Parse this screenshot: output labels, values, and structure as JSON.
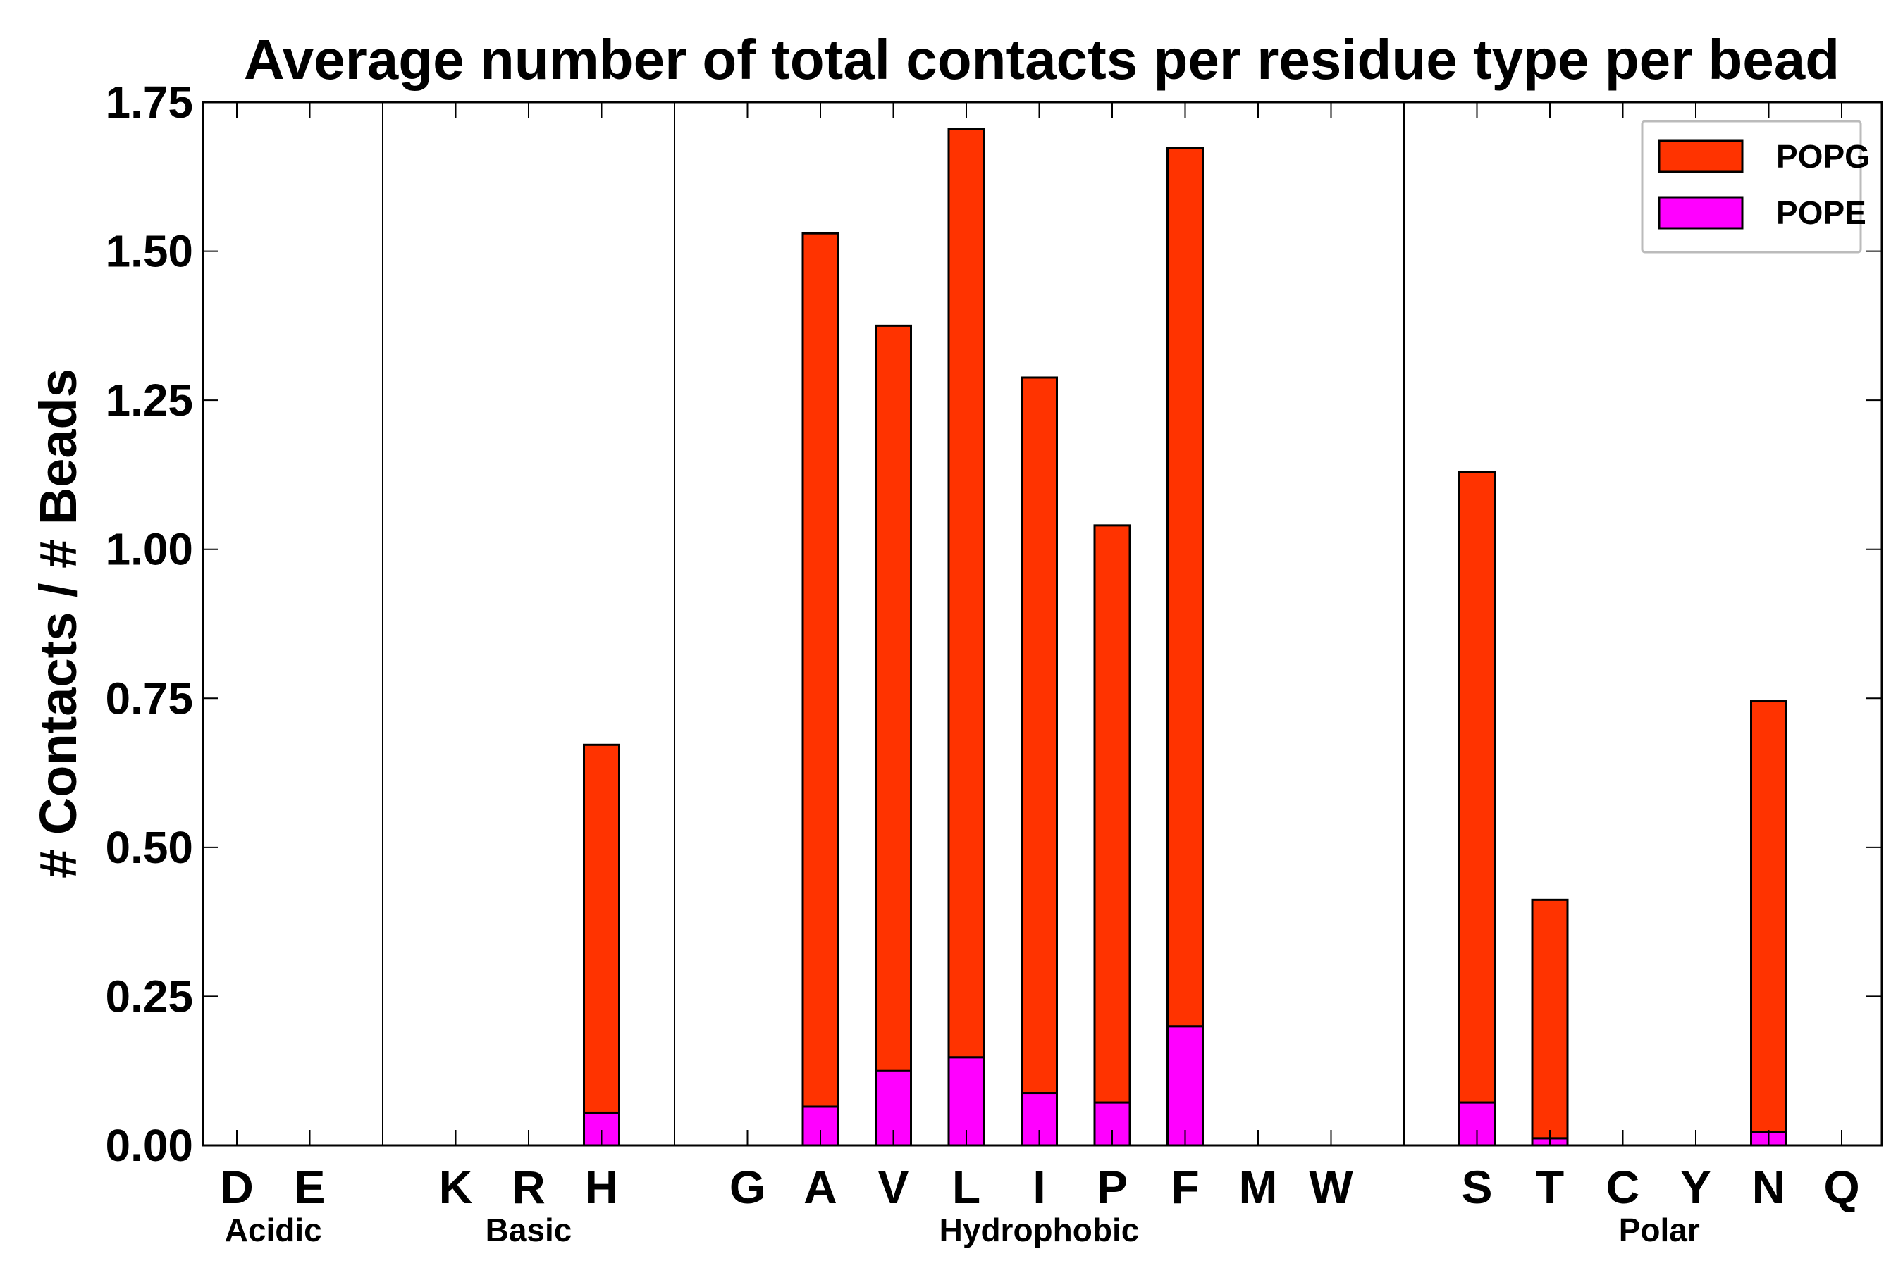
{
  "chart_data": {
    "type": "bar",
    "stacked": true,
    "title": "Average number of total contacts per residue type per bead",
    "xlabel": "",
    "ylabel": "# Contacts / # Beads",
    "ylim": [
      0,
      1.75
    ],
    "yticks": [
      "0.00",
      "0.25",
      "0.50",
      "0.75",
      "1.00",
      "1.25",
      "1.50",
      "1.75"
    ],
    "ytick_values": [
      0,
      0.25,
      0.5,
      0.75,
      1.0,
      1.25,
      1.5,
      1.75
    ],
    "categories": [
      "D",
      "E",
      "",
      "K",
      "R",
      "H",
      "",
      "G",
      "A",
      "V",
      "L",
      "I",
      "P",
      "F",
      "M",
      "W",
      "",
      "S",
      "T",
      "C",
      "Y",
      "N",
      "Q"
    ],
    "groups": [
      {
        "label": "Acidic",
        "start": 0,
        "end": 1
      },
      {
        "label": "Basic",
        "start": 3,
        "end": 5
      },
      {
        "label": "Hydrophobic",
        "start": 7,
        "end": 15
      },
      {
        "label": "Polar",
        "start": 17,
        "end": 22
      }
    ],
    "separators_after": [
      2,
      6,
      16
    ],
    "series": [
      {
        "name": "POPE",
        "color": "#ff00ff",
        "values": [
          0,
          0,
          0,
          0,
          0,
          0.055,
          0,
          0,
          0.065,
          0.125,
          0.148,
          0.088,
          0.072,
          0.2,
          0,
          0,
          0,
          0.072,
          0.012,
          0,
          0,
          0.022,
          0
        ]
      },
      {
        "name": "POPG",
        "color": "#ff3300",
        "values": [
          0,
          0,
          0,
          0,
          0,
          0.617,
          0,
          0,
          1.465,
          1.25,
          1.557,
          1.2,
          0.968,
          1.473,
          0,
          0,
          0,
          1.058,
          0.4,
          0,
          0,
          0.723,
          0
        ]
      }
    ],
    "legend": {
      "position": "top-right",
      "order": [
        "POPG",
        "POPE"
      ]
    },
    "grid": false
  }
}
